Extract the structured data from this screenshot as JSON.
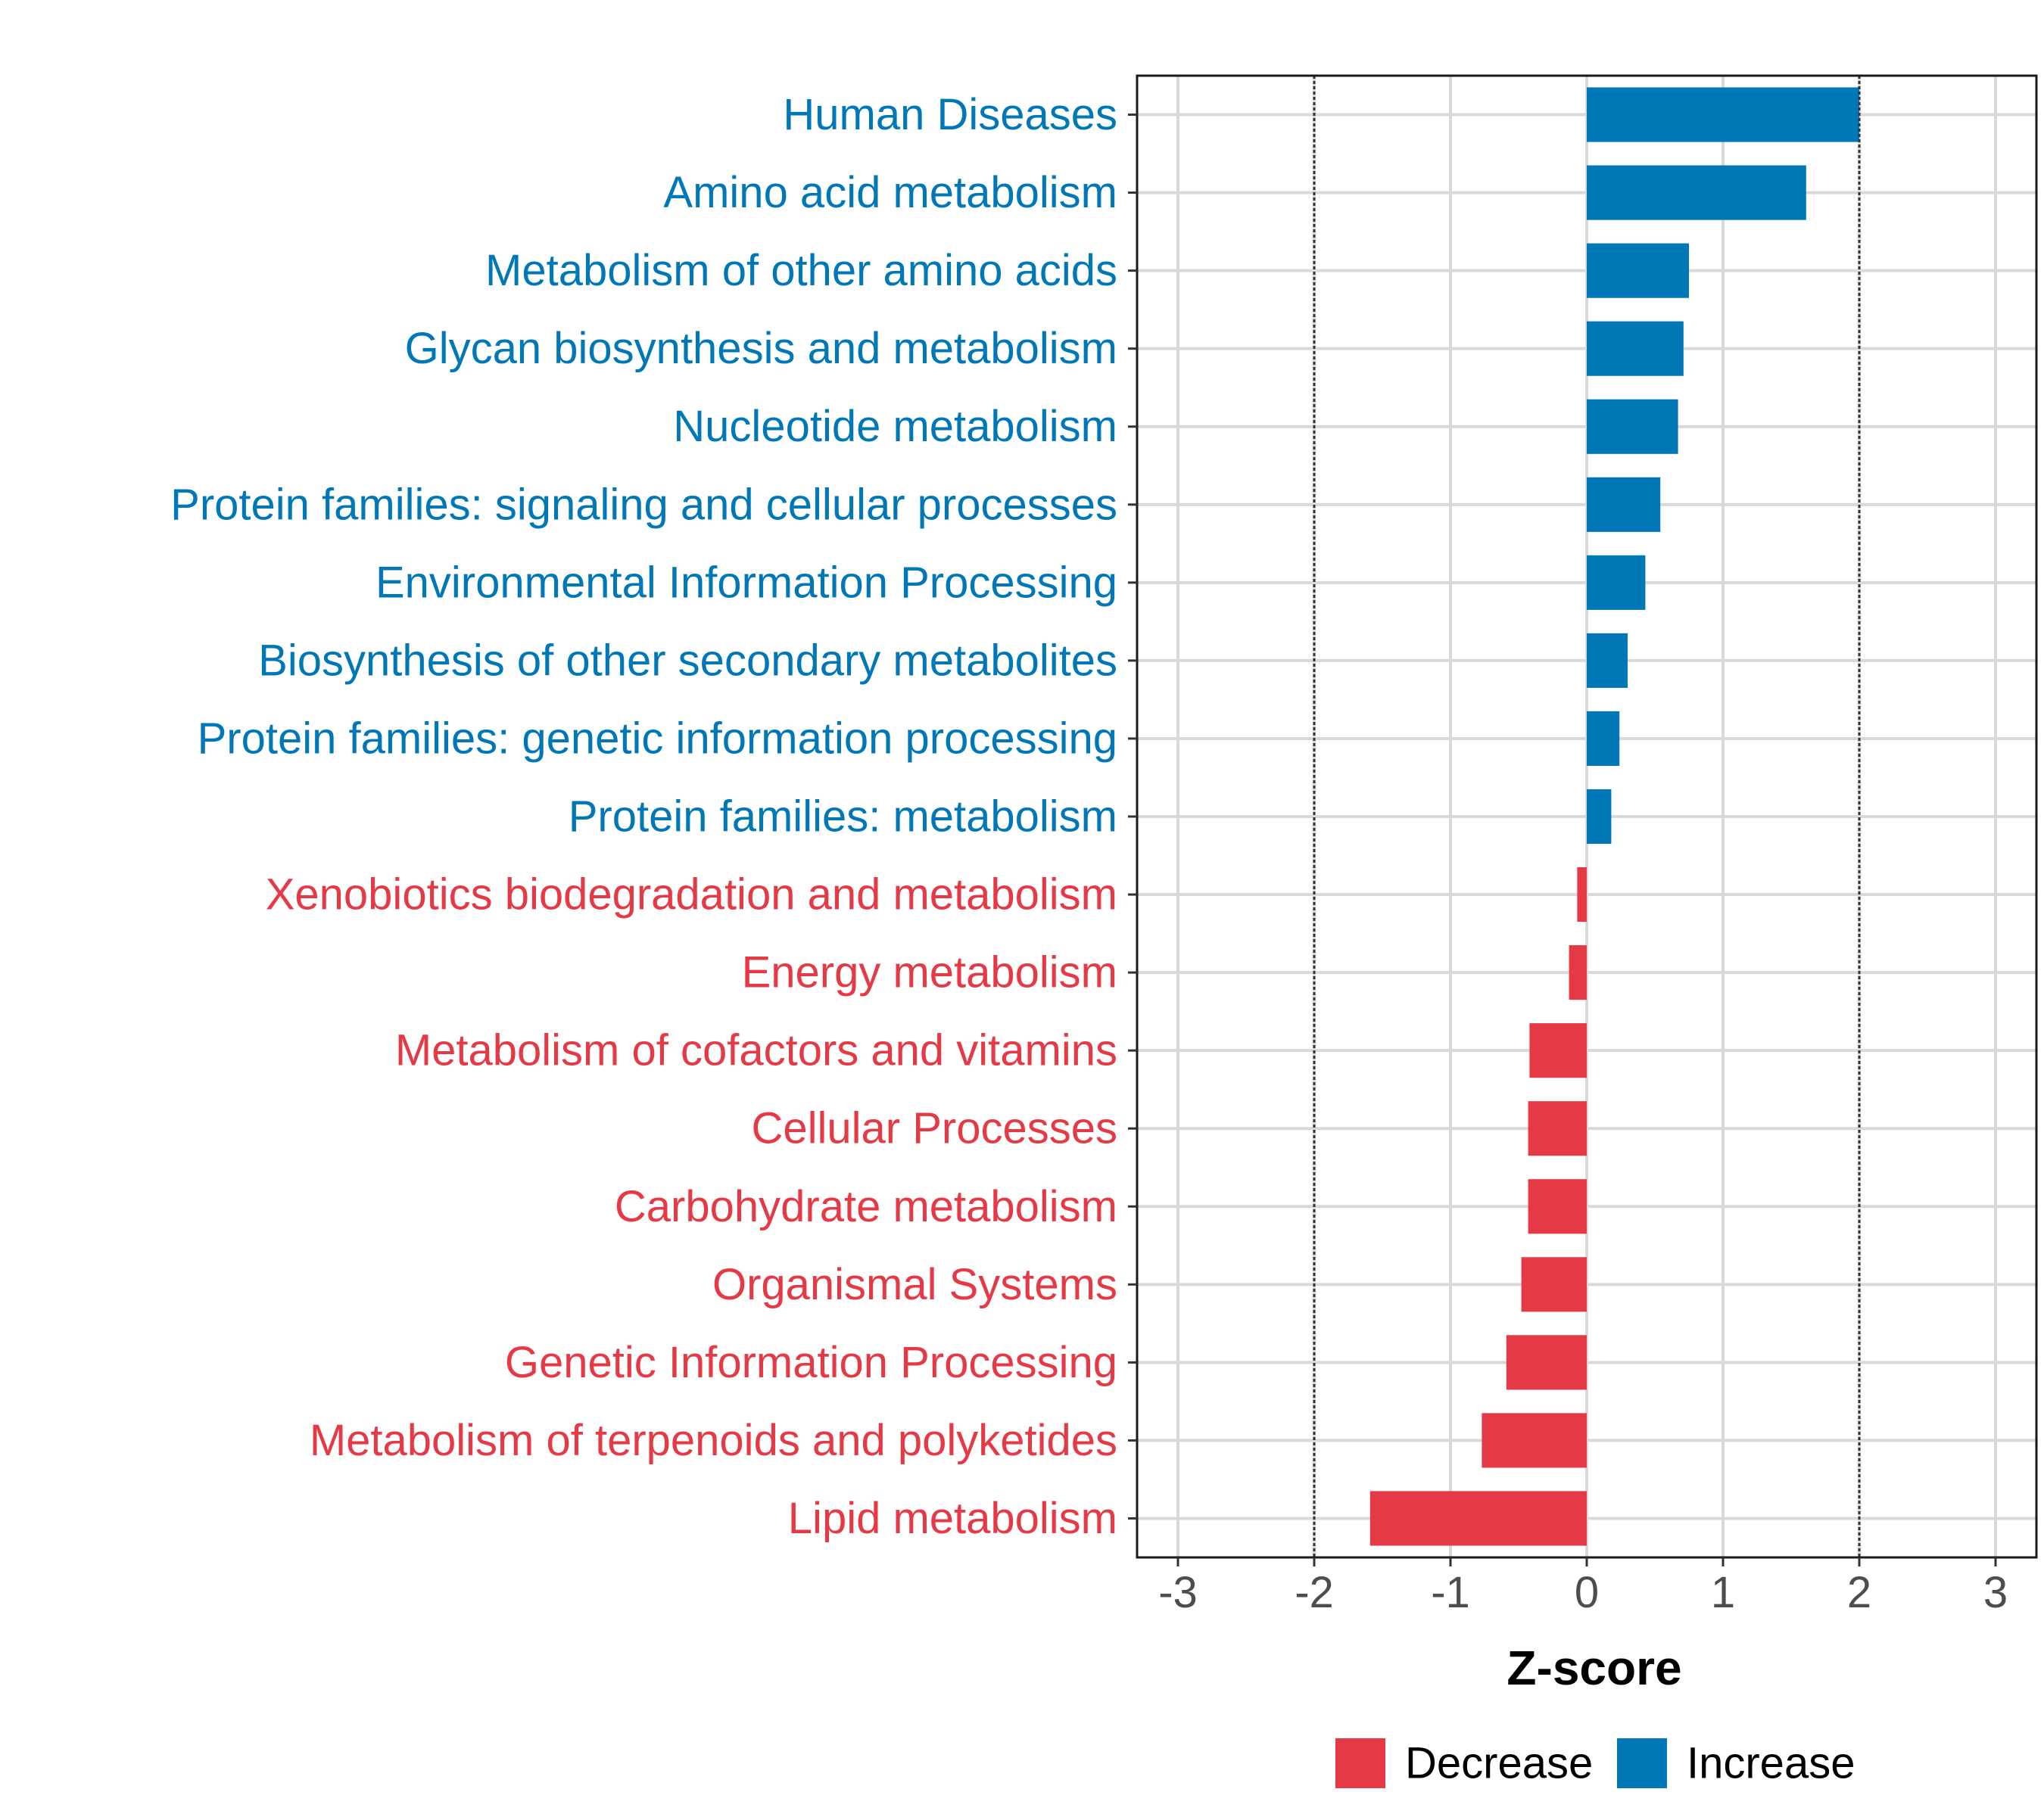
{
  "chart_data": {
    "type": "bar",
    "orientation": "horizontal",
    "xlabel": "Z-score",
    "ylabel": "",
    "xlim": [
      -3.3,
      3.3
    ],
    "xticks": [
      -3,
      -2,
      -1,
      0,
      1,
      2,
      3
    ],
    "xtick_labels": [
      "-3",
      "-2",
      "-1",
      "0",
      "1",
      "2",
      "3"
    ],
    "reference_lines": [
      -2,
      2
    ],
    "grid": true,
    "legend_position": "bottom",
    "legend": [
      {
        "name": "Decrease",
        "color": "#E63946"
      },
      {
        "name": "Increase",
        "color": "#0077B6"
      }
    ],
    "categories": [
      "Human Diseases",
      "Amino acid metabolism",
      "Metabolism of other amino acids",
      "Glycan biosynthesis and metabolism",
      "Nucleotide metabolism",
      "Protein families: signaling and cellular processes",
      "Environmental Information Processing",
      "Biosynthesis of other secondary metabolites",
      "Protein families: genetic information processing",
      "Protein families: metabolism",
      "Xenobiotics biodegradation and metabolism",
      "Energy metabolism",
      "Metabolism of cofactors and vitamins",
      "Cellular Processes",
      "Carbohydrate metabolism",
      "Organismal Systems",
      "Genetic Information Processing",
      "Metabolism of terpenoids and polyketides",
      "Lipid metabolism"
    ],
    "values": [
      2.0,
      1.61,
      0.75,
      0.71,
      0.67,
      0.54,
      0.43,
      0.3,
      0.24,
      0.18,
      -0.07,
      -0.13,
      -0.42,
      -0.43,
      -0.43,
      -0.48,
      -0.59,
      -0.77,
      -1.59
    ],
    "groups": [
      "Increase",
      "Increase",
      "Increase",
      "Increase",
      "Increase",
      "Increase",
      "Increase",
      "Increase",
      "Increase",
      "Increase",
      "Decrease",
      "Decrease",
      "Decrease",
      "Decrease",
      "Decrease",
      "Decrease",
      "Decrease",
      "Decrease",
      "Decrease"
    ]
  }
}
